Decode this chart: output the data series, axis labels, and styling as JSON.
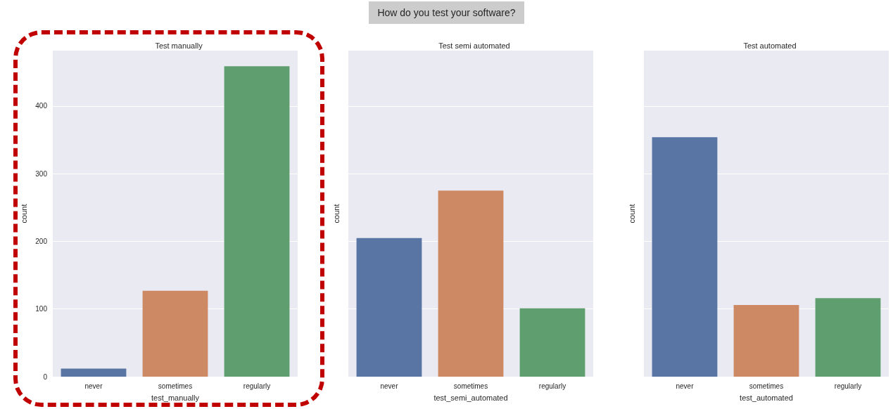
{
  "chart_data": [
    {
      "type": "bar",
      "title": "Test manually",
      "xlabel": "test_manually",
      "ylabel": "count",
      "annotations": [
        "How do you test your software?"
      ],
      "categories": [
        "never",
        "sometimes",
        "regularly"
      ],
      "values": [
        12,
        127,
        459
      ],
      "colors": [
        "#5875a4",
        "#cc8963",
        "#5f9e6e"
      ],
      "ylim": [
        0,
        482
      ],
      "yticks": [
        0,
        100,
        200,
        300,
        400
      ],
      "grid": "y"
    },
    {
      "type": "bar",
      "title": "Test semi automated",
      "xlabel": "test_semi_automated",
      "ylabel": "count",
      "categories": [
        "never",
        "sometimes",
        "regularly"
      ],
      "values": [
        205,
        275,
        101
      ],
      "colors": [
        "#5875a4",
        "#cc8963",
        "#5f9e6e"
      ],
      "ylim": [
        0,
        482
      ],
      "yticks": [
        0,
        100,
        200,
        300,
        400
      ],
      "grid": "y",
      "tick_labels": "x"
    },
    {
      "type": "bar",
      "title": "Test automated",
      "xlabel": "test_automated",
      "ylabel": "count",
      "categories": [
        "never",
        "sometimes",
        "regularly"
      ],
      "values": [
        354,
        106,
        116
      ],
      "colors": [
        "#5875a4",
        "#cc8963",
        "#5f9e6e"
      ],
      "ylim": [
        0,
        482
      ],
      "yticks": [
        0,
        100,
        200,
        300,
        400
      ],
      "grid": "y",
      "tick_labels": "x"
    }
  ]
}
